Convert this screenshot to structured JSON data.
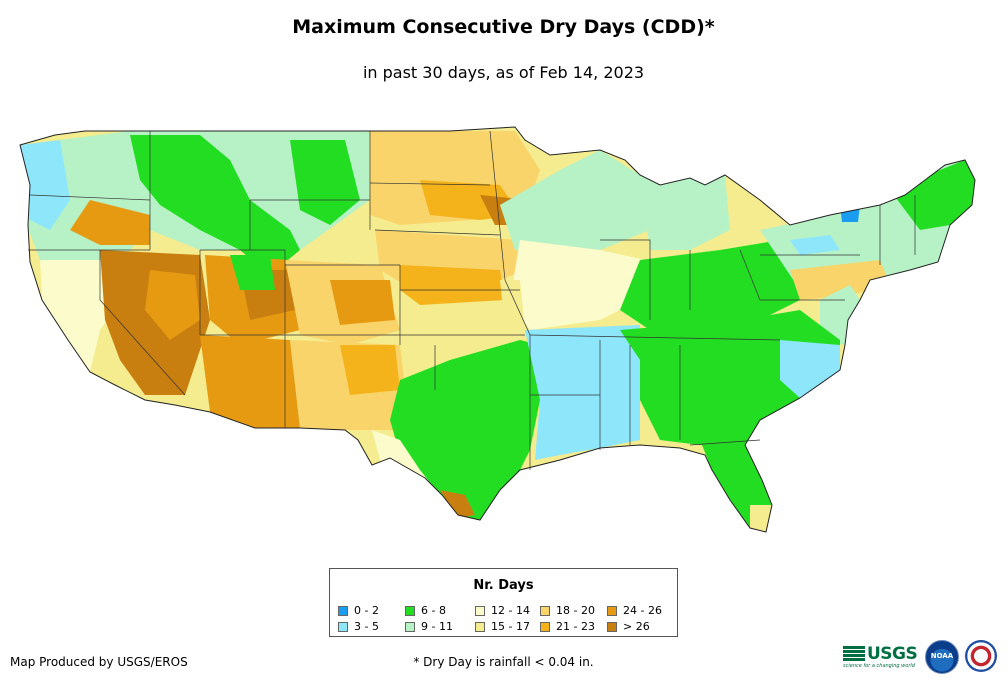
{
  "title": "Maximum Consecutive Dry Days (CDD)*",
  "subtitle": "in past 30 days, as of Feb 14, 2023",
  "legend": {
    "title": "Nr. Days",
    "items": [
      {
        "label": "0 - 2",
        "color": "#1a9cf0"
      },
      {
        "label": "3 - 5",
        "color": "#8ee6fa"
      },
      {
        "label": "6 - 8",
        "color": "#22dd22"
      },
      {
        "label": "9 - 11",
        "color": "#b6f2c6"
      },
      {
        "label": "12 - 14",
        "color": "#fbfbcb"
      },
      {
        "label": "15 - 17",
        "color": "#f4ec8e"
      },
      {
        "label": "18 - 20",
        "color": "#f9d46a"
      },
      {
        "label": "21 - 23",
        "color": "#f4b31a"
      },
      {
        "label": "24 - 26",
        "color": "#e69a12"
      },
      {
        "label": "> 26",
        "color": "#c97f10"
      }
    ]
  },
  "credit": "Map Produced by USGS/EROS",
  "footnote": "* Dry Day is rainfall < 0.04 in.",
  "logos": {
    "usgs": "USGS",
    "usgs_tagline": "science for a changing world",
    "noaa": "NOAA",
    "nws_icon": "nws-icon"
  }
}
